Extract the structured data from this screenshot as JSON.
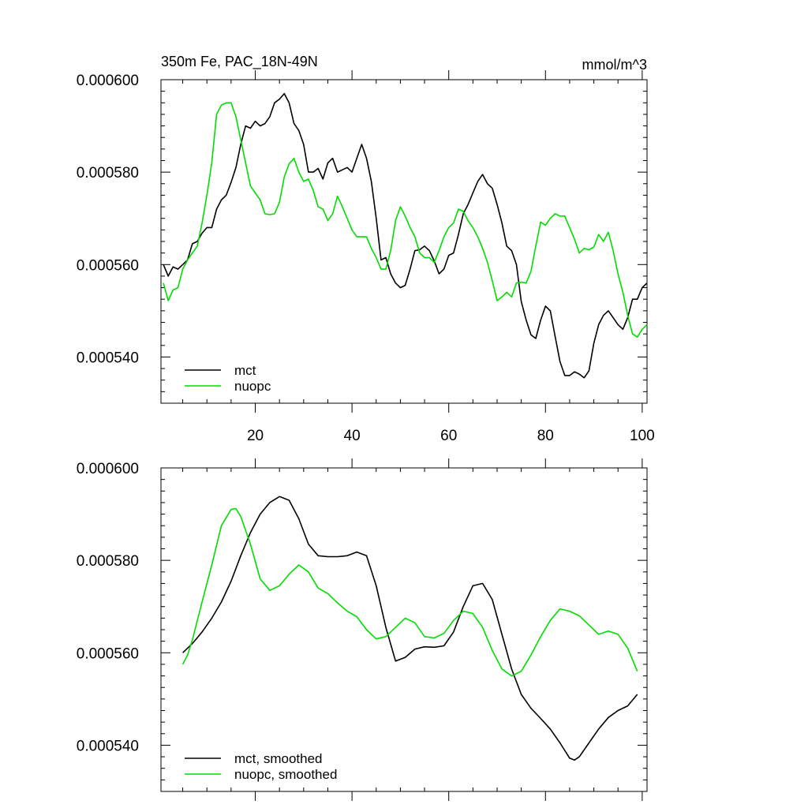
{
  "colors": {
    "mct": "#000000",
    "nuopc": "#00dd00",
    "axis": "#000000",
    "background": "#ffffff"
  },
  "chart_data": [
    {
      "type": "line",
      "title": "350m Fe, PAC_18N-49N",
      "units": "mmol/m^3",
      "xlim": [
        0.5,
        101
      ],
      "ylim": [
        0.00053,
        0.0006
      ],
      "xticks": [
        20,
        40,
        60,
        80,
        100
      ],
      "xtick_labels": [
        "20",
        "40",
        "60",
        "80",
        "100"
      ],
      "yticks": [
        0.00054,
        0.00056,
        0.00058,
        0.0006
      ],
      "ytick_labels": [
        "0.000540",
        "0.000560",
        "0.000580",
        "0.000600"
      ],
      "grid": false,
      "legend_position": "bottom-left",
      "series": [
        {
          "name": "mct",
          "color": "#000000",
          "x": [
            1,
            2,
            3,
            4,
            5,
            6,
            7,
            8,
            9,
            10,
            11,
            12,
            13,
            14,
            15,
            16,
            17,
            18,
            19,
            20,
            21,
            22,
            23,
            24,
            25,
            26,
            27,
            28,
            29,
            30,
            31,
            32,
            33,
            34,
            35,
            36,
            37,
            38,
            39,
            40,
            41,
            42,
            43,
            44,
            45,
            46,
            47,
            48,
            49,
            50,
            51,
            52,
            53,
            54,
            55,
            56,
            57,
            58,
            59,
            60,
            61,
            62,
            63,
            64,
            65,
            66,
            67,
            68,
            69,
            70,
            71,
            72,
            73,
            74,
            75,
            76,
            77,
            78,
            79,
            80,
            81,
            82,
            83,
            84,
            85,
            86,
            87,
            88,
            89,
            90,
            91,
            92,
            93,
            94,
            95,
            96,
            97,
            98,
            99,
            100,
            101
          ],
          "y": [
            0.00056,
            0.0005575,
            0.0005595,
            0.000559,
            0.00056,
            0.000561,
            0.0005645,
            0.000565,
            0.0005668,
            0.000568,
            0.000568,
            0.000572,
            0.000574,
            0.000575,
            0.0005778,
            0.000581,
            0.000586,
            0.00059,
            0.0005895,
            0.000591,
            0.00059,
            0.0005905,
            0.000592,
            0.000595,
            0.0005958,
            0.000597,
            0.000595,
            0.0005905,
            0.000589,
            0.000586,
            0.00058,
            0.00058,
            0.0005808,
            0.0005785,
            0.000582,
            0.000583,
            0.00058,
            0.0005805,
            0.000581,
            0.00058,
            0.000583,
            0.000586,
            0.000583,
            0.000578,
            0.00057,
            0.000561,
            0.0005615,
            0.000558,
            0.000556,
            0.000555,
            0.0005555,
            0.000559,
            0.000563,
            0.0005632,
            0.000564,
            0.000563,
            0.0005608,
            0.000558,
            0.000559,
            0.000562,
            0.0005625,
            0.0005665,
            0.000571,
            0.000573,
            0.0005755,
            0.000578,
            0.0005795,
            0.0005775,
            0.0005765,
            0.000573,
            0.000569,
            0.000564,
            0.000563,
            0.00056,
            0.000552,
            0.000548,
            0.0005448,
            0.000544,
            0.000548,
            0.000551,
            0.00055,
            0.0005445,
            0.000539,
            0.000536,
            0.000536,
            0.0005368,
            0.0005363,
            0.0005355,
            0.000537,
            0.000543,
            0.000547,
            0.000549,
            0.00055,
            0.0005485,
            0.000547,
            0.000546,
            0.0005485,
            0.0005525,
            0.0005525,
            0.000555,
            0.000556
          ]
        },
        {
          "name": "nuopc",
          "color": "#00dd00",
          "x": [
            1,
            2,
            3,
            4,
            5,
            6,
            7,
            8,
            9,
            10,
            11,
            12,
            13,
            14,
            15,
            16,
            17,
            18,
            19,
            20,
            21,
            22,
            23,
            24,
            25,
            26,
            27,
            28,
            29,
            30,
            31,
            32,
            33,
            34,
            35,
            36,
            37,
            38,
            39,
            40,
            41,
            42,
            43,
            44,
            45,
            46,
            47,
            48,
            49,
            50,
            51,
            52,
            53,
            54,
            55,
            56,
            57,
            58,
            59,
            60,
            61,
            62,
            63,
            64,
            65,
            66,
            67,
            68,
            69,
            70,
            71,
            72,
            73,
            74,
            75,
            76,
            77,
            78,
            79,
            80,
            81,
            82,
            83,
            84,
            85,
            86,
            87,
            88,
            89,
            90,
            91,
            92,
            93,
            94,
            95,
            96,
            97,
            98,
            99,
            100,
            101
          ],
          "y": [
            0.000556,
            0.0005522,
            0.0005545,
            0.000555,
            0.000559,
            0.000561,
            0.0005625,
            0.000564,
            0.000569,
            0.000575,
            0.000582,
            0.0005925,
            0.0005945,
            0.000595,
            0.000595,
            0.000592,
            0.000587,
            0.000582,
            0.000577,
            0.0005755,
            0.000574,
            0.000571,
            0.0005708,
            0.000571,
            0.0005735,
            0.000579,
            0.0005818,
            0.000583,
            0.00058,
            0.000578,
            0.0005785,
            0.000576,
            0.0005725,
            0.000572,
            0.0005695,
            0.000571,
            0.0005748,
            0.0005725,
            0.00057,
            0.0005675,
            0.000566,
            0.000566,
            0.000566,
            0.0005635,
            0.0005615,
            0.000559,
            0.000559,
            0.000563,
            0.0005695,
            0.0005725,
            0.0005705,
            0.000568,
            0.000566,
            0.0005625,
            0.0005615,
            0.0005615,
            0.0005605,
            0.000563,
            0.000566,
            0.000568,
            0.000569,
            0.000572,
            0.0005715,
            0.0005695,
            0.000568,
            0.000566,
            0.0005635,
            0.0005605,
            0.0005565,
            0.0005522,
            0.000553,
            0.000554,
            0.000553,
            0.000556,
            0.0005562,
            0.000556,
            0.0005585,
            0.000564,
            0.0005692,
            0.0005685,
            0.00057,
            0.000571,
            0.0005705,
            0.0005705,
            0.000568,
            0.0005655,
            0.0005625,
            0.0005635,
            0.0005632,
            0.0005638,
            0.0005665,
            0.000565,
            0.000567,
            0.000563,
            0.000558,
            0.000554,
            0.000549,
            0.000545,
            0.0005443,
            0.000546,
            0.000547
          ]
        }
      ],
      "legend": [
        {
          "label": "mct",
          "color": "#000000"
        },
        {
          "label": "nuopc",
          "color": "#00dd00"
        }
      ]
    },
    {
      "type": "line",
      "title": "",
      "units": "",
      "xlim": [
        0.5,
        101
      ],
      "ylim": [
        0.00053,
        0.0006
      ],
      "xticks": [
        20,
        40,
        60,
        80,
        100
      ],
      "xtick_labels": [],
      "yticks": [
        0.00054,
        0.00056,
        0.00058,
        0.0006
      ],
      "ytick_labels": [
        "0.000540",
        "0.000560",
        "0.000580",
        "0.000600"
      ],
      "grid": false,
      "legend_position": "bottom-left",
      "series": [
        {
          "name": "mct, smoothed",
          "color": "#000000",
          "x": [
            5,
            7,
            9,
            11,
            13,
            15,
            17,
            19,
            21,
            23,
            25,
            27,
            29,
            31,
            33,
            35,
            37,
            39,
            41,
            43,
            45,
            47,
            49,
            51,
            53,
            55,
            57,
            59,
            61,
            63,
            65,
            67,
            69,
            71,
            73,
            75,
            77,
            79,
            81,
            83,
            85,
            86,
            87,
            89,
            91,
            93,
            95,
            97,
            99
          ],
          "y": [
            0.00056,
            0.000562,
            0.0005645,
            0.0005675,
            0.000571,
            0.0005755,
            0.000581,
            0.000586,
            0.00059,
            0.0005925,
            0.0005938,
            0.000593,
            0.000589,
            0.0005835,
            0.000581,
            0.0005808,
            0.0005808,
            0.000581,
            0.0005818,
            0.000581,
            0.0005745,
            0.0005655,
            0.0005582,
            0.000559,
            0.0005608,
            0.0005613,
            0.0005612,
            0.0005615,
            0.0005645,
            0.00057,
            0.0005745,
            0.000575,
            0.0005715,
            0.000564,
            0.0005565,
            0.000551,
            0.000548,
            0.0005458,
            0.0005435,
            0.0005405,
            0.0005372,
            0.0005368,
            0.0005375,
            0.0005405,
            0.0005435,
            0.000546,
            0.0005475,
            0.0005485,
            0.000551
          ]
        },
        {
          "name": "nuopc, smoothed",
          "color": "#00dd00",
          "x": [
            5,
            6,
            7,
            9,
            11,
            13,
            15,
            16,
            17,
            19,
            21,
            23,
            25,
            27,
            29,
            31,
            33,
            35,
            37,
            39,
            41,
            43,
            45,
            47,
            49,
            51,
            53,
            55,
            57,
            59,
            61,
            63,
            65,
            67,
            69,
            71,
            73,
            75,
            77,
            79,
            81,
            83,
            85,
            87,
            89,
            91,
            93,
            95,
            97,
            99
          ],
          "y": [
            0.0005575,
            0.0005595,
            0.0005628,
            0.000571,
            0.000579,
            0.0005875,
            0.000591,
            0.0005912,
            0.0005895,
            0.0005835,
            0.000576,
            0.0005735,
            0.0005745,
            0.000577,
            0.000579,
            0.0005775,
            0.000574,
            0.0005728,
            0.0005708,
            0.000569,
            0.0005678,
            0.000565,
            0.000563,
            0.0005635,
            0.0005655,
            0.0005675,
            0.0005665,
            0.0005635,
            0.0005632,
            0.0005642,
            0.000567,
            0.000569,
            0.0005685,
            0.0005655,
            0.0005605,
            0.0005565,
            0.000555,
            0.000556,
            0.0005595,
            0.0005635,
            0.000567,
            0.0005695,
            0.000569,
            0.000568,
            0.000566,
            0.000564,
            0.0005647,
            0.000564,
            0.000561,
            0.000556
          ]
        }
      ],
      "legend": [
        {
          "label": "mct, smoothed",
          "color": "#000000"
        },
        {
          "label": "nuopc, smoothed",
          "color": "#00dd00"
        }
      ]
    }
  ]
}
